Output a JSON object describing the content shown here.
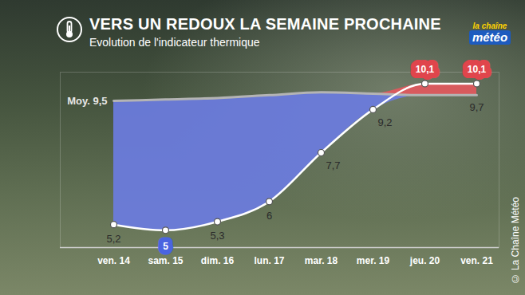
{
  "chart_data": {
    "type": "line",
    "title": "VERS UN REDOUX LA SEMAINE PROCHAINE",
    "subtitle": "Evolution de l'indicateur thermique",
    "logo": [
      "la chaîne",
      "météo"
    ],
    "credit": "© La Chaîne Météo",
    "categories": [
      "ven. 14",
      "sam. 15",
      "dim. 16",
      "lun. 17",
      "mar. 18",
      "mer. 19",
      "jeu. 20",
      "ven. 21"
    ],
    "series": [
      {
        "values": [
          5.2,
          5,
          5.3,
          6,
          7.7,
          9.2,
          10.1,
          10.1
        ],
        "value_labels": [
          "5,2",
          "5",
          "5,3",
          "6",
          "7,7",
          "9,2",
          "10,1",
          "10,1"
        ],
        "color": "#ffffff",
        "marker": "circle"
      },
      {
        "name": "Moy.",
        "values": [
          9.5,
          9.55,
          9.6,
          9.7,
          9.8,
          9.75,
          9.7,
          9.7
        ],
        "value_labels": [
          "9,5",
          null,
          null,
          null,
          null,
          null,
          null,
          "9,7"
        ],
        "color": "#b4b4b4"
      }
    ],
    "ylim": [
      4.4,
      10.5
    ],
    "yticks": [],
    "tick_labels": "x",
    "data_labels": true
  }
}
